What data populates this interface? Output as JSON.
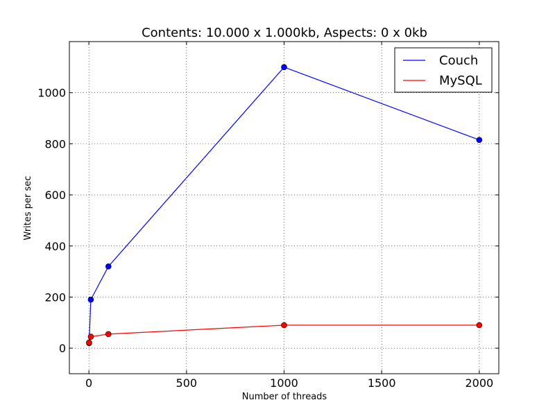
{
  "chart_data": {
    "type": "line",
    "title": "Contents: 10.000 x 1.000kb, Aspects: 0 x 0kb",
    "xlabel": "Number of threads",
    "ylabel": "Writes per sec",
    "xlim": [
      -100,
      2100
    ],
    "ylim": [
      -100,
      1200
    ],
    "xticks": [
      0,
      500,
      1000,
      1500,
      2000
    ],
    "yticks": [
      0,
      200,
      400,
      600,
      800,
      1000
    ],
    "grid": true,
    "legend_position": "top-right",
    "series": [
      {
        "name": "Couch",
        "color": "#0000ff",
        "x": [
          1,
          10,
          100,
          1000,
          2000
        ],
        "y": [
          20,
          190,
          320,
          1100,
          815
        ]
      },
      {
        "name": "MySQL",
        "color": "#ff0000",
        "x": [
          1,
          10,
          100,
          1000,
          2000
        ],
        "y": [
          22,
          45,
          55,
          90,
          90
        ]
      }
    ]
  }
}
